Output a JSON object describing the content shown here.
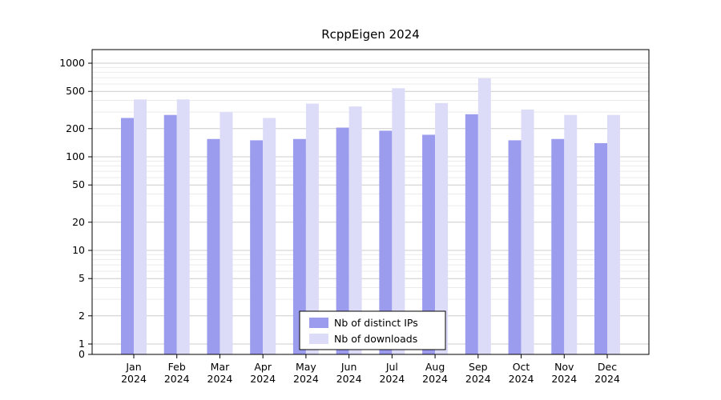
{
  "title": "RcppEigen 2024",
  "chart_data": {
    "type": "bar",
    "title": "RcppEigen 2024",
    "yscale": "log",
    "grid": true,
    "categories": [
      "Jan",
      "Feb",
      "Mar",
      "Apr",
      "May",
      "Jun",
      "Jul",
      "Aug",
      "Sep",
      "Oct",
      "Nov",
      "Dec"
    ],
    "category_year": "2024",
    "series": [
      {
        "name": "Nb of distinct IPs",
        "color": "#9c9cee",
        "values": [
          260,
          280,
          155,
          150,
          155,
          205,
          190,
          172,
          285,
          150,
          155,
          140
        ]
      },
      {
        "name": "Nb of downloads",
        "color": "#dcdcf8",
        "values": [
          410,
          410,
          300,
          260,
          370,
          345,
          540,
          375,
          690,
          320,
          280,
          280
        ]
      }
    ],
    "yticks": [
      0,
      1,
      2,
      5,
      10,
      20,
      50,
      100,
      200,
      500,
      1000
    ],
    "ylim": [
      0,
      1400
    ],
    "legend": {
      "position": "bottom-center-inside",
      "entries": [
        "Nb of distinct IPs",
        "Nb of downloads"
      ]
    }
  },
  "colors": {
    "grid_major": "#cccccc",
    "grid_minor": "#ebebeb",
    "axis": "#000000",
    "background": "#ffffff"
  }
}
